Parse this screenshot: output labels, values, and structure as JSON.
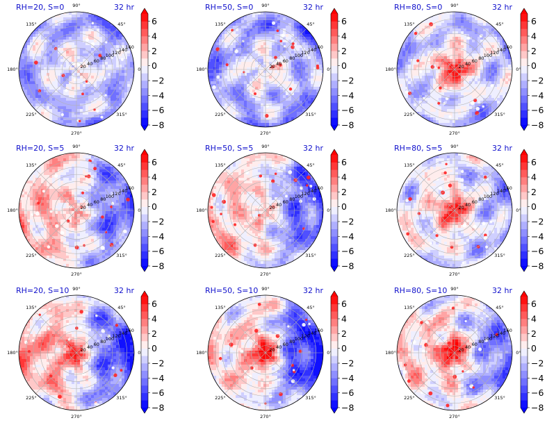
{
  "figure": {
    "time_label": "32 hr",
    "panel_titles": [
      "RH=20, S=0",
      "RH=50, S=0",
      "RH=80, S=0",
      "RH=20, S=5",
      "RH=50, S=5",
      "RH=80, S=5",
      "RH=20, S=10",
      "RH=50, S=10",
      "RH=80, S=10"
    ]
  },
  "colors": {
    "title_color": "#1010cc",
    "cmap_low": "#0000ff",
    "cmap_mid": "#ffffff",
    "cmap_high": "#ff0000",
    "grid_color": "#b0b0b0"
  },
  "chart_data": {
    "type": "heatmap",
    "projection": "polar",
    "panels": [
      {
        "title": "RH=20, S=0",
        "time": "32 hr",
        "core": 0.2,
        "trend": -3.0,
        "west": 0.0,
        "east": 0.0
      },
      {
        "title": "RH=50, S=0",
        "time": "32 hr",
        "core": 1.0,
        "trend": -3.5,
        "west": 0.0,
        "east": 0.0
      },
      {
        "title": "RH=80, S=0",
        "time": "32 hr",
        "core": 6.5,
        "trend": -2.0,
        "west": 0.0,
        "east": 0.0
      },
      {
        "title": "RH=20, S=5",
        "time": "32 hr",
        "core": 2.0,
        "trend": 0.0,
        "west": 2.0,
        "east": -4.5
      },
      {
        "title": "RH=50, S=5",
        "time": "32 hr",
        "core": 1.5,
        "trend": 0.0,
        "west": 1.5,
        "east": -5.0
      },
      {
        "title": "RH=80, S=5",
        "time": "32 hr",
        "core": 6.5,
        "trend": -1.0,
        "west": 0.5,
        "east": -1.5
      },
      {
        "title": "RH=20, S=10",
        "time": "32 hr",
        "core": 5.0,
        "trend": 0.0,
        "west": 2.5,
        "east": -5.5
      },
      {
        "title": "RH=50, S=10",
        "time": "32 hr",
        "core": 7.0,
        "trend": 0.0,
        "west": 1.0,
        "east": -6.5
      },
      {
        "title": "RH=80, S=10",
        "time": "32 hr",
        "core": 7.0,
        "trend": 0.0,
        "west": 1.0,
        "east": -4.0
      }
    ],
    "radial_ticks": [
      "20",
      "40",
      "60",
      "80",
      "100",
      "120",
      "140",
      "160"
    ],
    "radial_range": [
      0,
      160
    ],
    "angular_ticks": [
      "0°",
      "45°",
      "90°",
      "135°",
      "180°",
      "225°",
      "270°",
      "315°"
    ],
    "colorbar": {
      "ticks": [
        "6",
        "4",
        "2",
        "0",
        "−2",
        "−4",
        "−6",
        "−8"
      ],
      "range": [
        -8,
        7
      ],
      "levels": [
        -8,
        -7,
        -6,
        -5,
        -4,
        -3,
        -2,
        -1,
        0,
        1,
        2,
        3,
        4,
        5,
        6,
        7
      ],
      "extend": "both"
    }
  }
}
